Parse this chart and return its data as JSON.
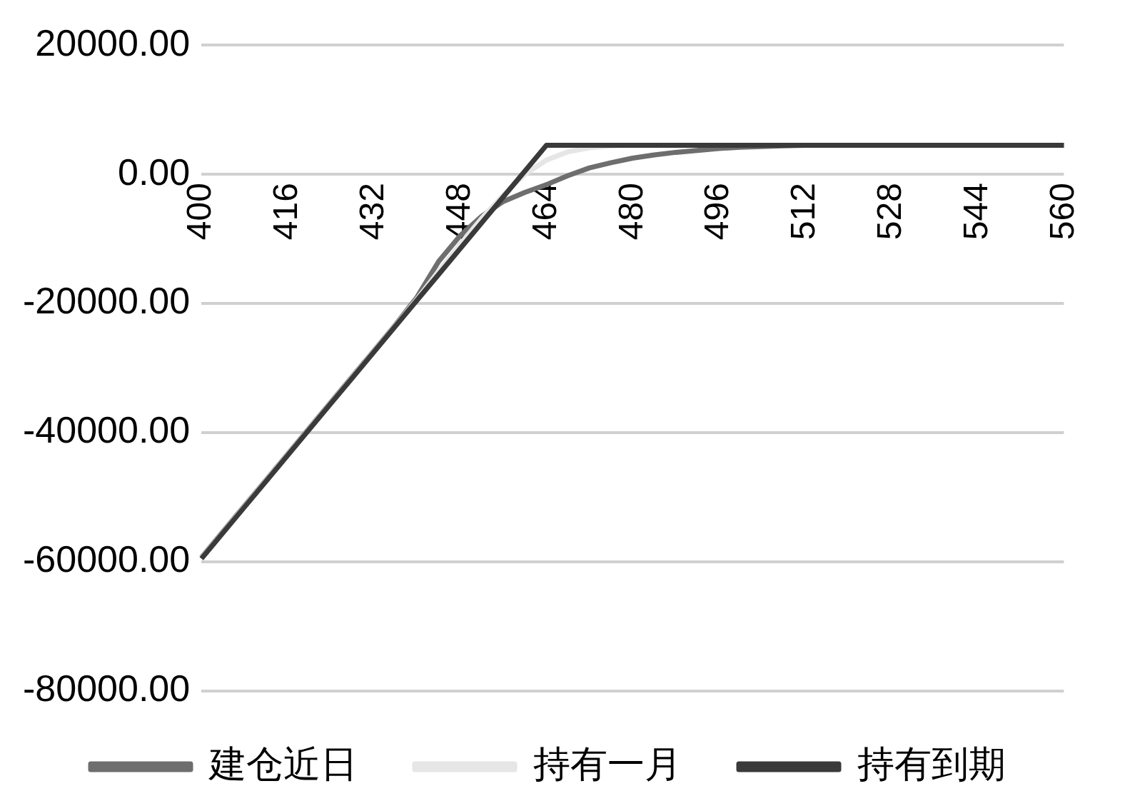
{
  "chart_data": {
    "type": "line",
    "categories": [
      "400",
      null,
      null,
      null,
      "416",
      null,
      null,
      null,
      "432",
      null,
      null,
      null,
      "448",
      null,
      null,
      null,
      "464",
      null,
      null,
      null,
      "480",
      null,
      null,
      null,
      "496",
      null,
      null,
      null,
      "512",
      null,
      null,
      null,
      "528",
      null,
      null,
      null,
      "544",
      null,
      null,
      null,
      "560"
    ],
    "series": [
      {
        "name": "建仓近日",
        "color": "#6e6e6e",
        "values": [
          -59300,
          -55300,
          -51300,
          -47300,
          -43300,
          -39300,
          -35300,
          -31300,
          -27300,
          -23300,
          -19000,
          -13500,
          -9500,
          -6500,
          -4200,
          -2800,
          -1600,
          -200,
          1000,
          1800,
          2500,
          3000,
          3400,
          3700,
          4000,
          4200,
          4300,
          4400,
          4500,
          4500,
          4500,
          4500,
          4500,
          4500,
          4500,
          4500,
          4500,
          4500,
          4500,
          4500,
          4500
        ]
      },
      {
        "name": "持有一月",
        "color": "#e6e6e6",
        "values": [
          -59400,
          -55400,
          -51400,
          -47400,
          -43400,
          -39400,
          -35400,
          -31400,
          -27400,
          -23400,
          -19300,
          -15000,
          -10800,
          -6800,
          -3200,
          0,
          2200,
          3500,
          4100,
          4400,
          4500,
          4500,
          4500,
          4500,
          4500,
          4500,
          4500,
          4500,
          4500,
          4500,
          4500,
          4500,
          4500,
          4500,
          4500,
          4500,
          4500,
          4500,
          4500,
          4500,
          4500
        ]
      },
      {
        "name": "持有到期",
        "color": "#3a3a3a",
        "values": [
          -59500,
          -55500,
          -51500,
          -47500,
          -43500,
          -39500,
          -35500,
          -31500,
          -27500,
          -23500,
          -19500,
          -15500,
          -11500,
          -7500,
          -3500,
          500,
          4500,
          4500,
          4500,
          4500,
          4500,
          4500,
          4500,
          4500,
          4500,
          4500,
          4500,
          4500,
          4500,
          4500,
          4500,
          4500,
          4500,
          4500,
          4500,
          4500,
          4500,
          4500,
          4500,
          4500,
          4500
        ]
      }
    ],
    "ylim": [
      -80000,
      20000
    ],
    "yticks": [
      {
        "value": -80000,
        "label": "-80000.00"
      },
      {
        "value": -60000,
        "label": "-60000.00"
      },
      {
        "value": -40000,
        "label": "-40000.00"
      },
      {
        "value": -20000,
        "label": "-20000.00"
      },
      {
        "value": 0,
        "label": "0.00"
      },
      {
        "value": 20000,
        "label": "20000.00"
      }
    ],
    "grid": "y",
    "legend": "bottom",
    "marker": "none"
  }
}
